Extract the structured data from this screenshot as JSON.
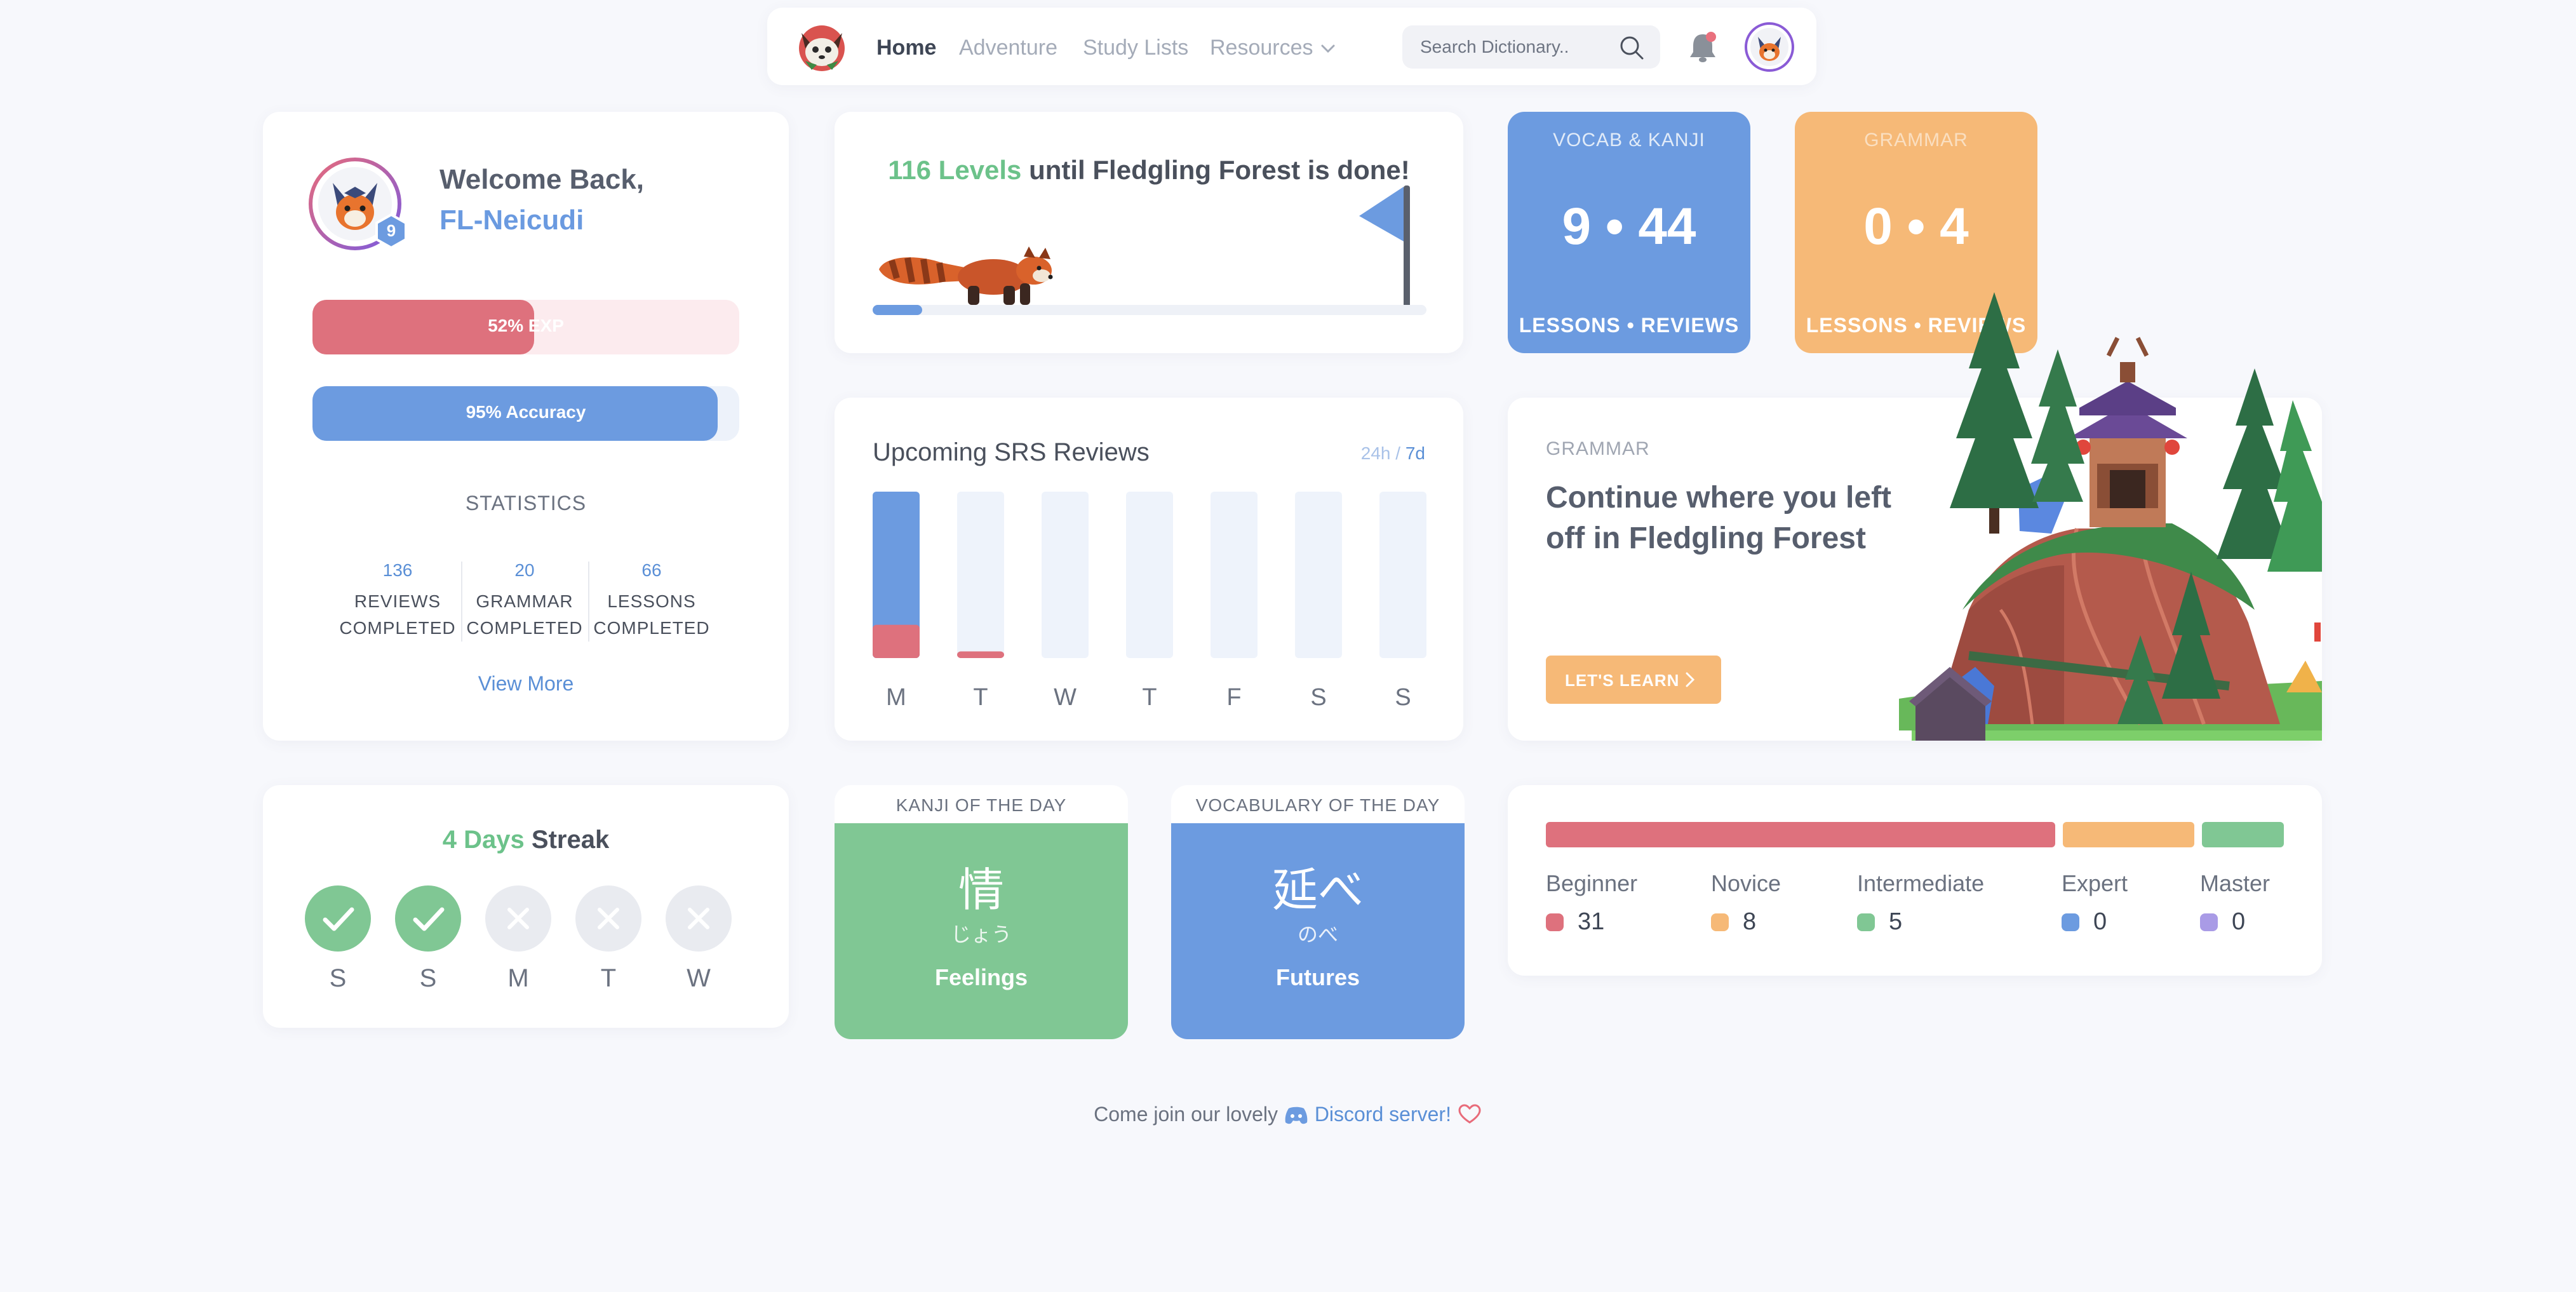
{
  "nav": {
    "items": [
      {
        "label": "Home",
        "active": true
      },
      {
        "label": "Adventure",
        "active": false
      },
      {
        "label": "Study Lists",
        "active": false
      },
      {
        "label": "Resources",
        "active": false
      }
    ],
    "search_placeholder": "Search Dictionary.."
  },
  "profile": {
    "welcome": "Welcome Back,",
    "username": "FL-Neicudi",
    "level": "9",
    "exp_label": "52% EXP",
    "exp_fraction": 0.52,
    "accuracy_label": "95% Accuracy",
    "accuracy_fraction": 0.95,
    "stats_heading": "STATISTICS",
    "stats": [
      {
        "value": "136",
        "label_line1": "REVIEWS",
        "label_line2": "COMPLETED"
      },
      {
        "value": "20",
        "label_line1": "GRAMMAR",
        "label_line2": "COMPLETED"
      },
      {
        "value": "66",
        "label_line1": "LESSONS",
        "label_line2": "COMPLETED"
      }
    ],
    "view_more": "View More"
  },
  "levels": {
    "count": "116 Levels",
    "rest": "until Fledgling Forest is done!",
    "progress_fraction": 0.09
  },
  "vocab_card": {
    "title": "VOCAB & KANJI",
    "value": "9 • 44",
    "sub": "LESSONS • REVIEWS"
  },
  "grammar_card": {
    "title": "GRAMMAR",
    "value": "0 • 4",
    "sub": "LESSONS • REVIEWS"
  },
  "srs": {
    "title": "Upcoming SRS Reviews",
    "toggle_24h": "24h",
    "toggle_sep": "/",
    "toggle_7d": "7d",
    "days": [
      "M",
      "T",
      "W",
      "T",
      "F",
      "S",
      "S"
    ],
    "blue_fraction": [
      1.0,
      0.0,
      0.0,
      0.0,
      0.0,
      0.0,
      0.0
    ],
    "red_fraction": [
      0.2,
      0.04,
      0.0,
      0.0,
      0.0,
      0.0,
      0.0
    ]
  },
  "continue": {
    "label": "GRAMMAR",
    "title": "Continue where you left off in Fledgling Forest",
    "button": "LET'S LEARN"
  },
  "streak": {
    "count": "4 Days",
    "word": "Streak",
    "days": [
      {
        "label": "S",
        "done": true
      },
      {
        "label": "S",
        "done": true
      },
      {
        "label": "M",
        "done": false
      },
      {
        "label": "T",
        "done": false
      },
      {
        "label": "W",
        "done": false
      }
    ]
  },
  "kanji_of_day": {
    "heading": "KANJI OF THE DAY",
    "character": "情",
    "reading": "じょう",
    "meaning": "Feelings"
  },
  "vocab_of_day": {
    "heading": "VOCABULARY OF THE DAY",
    "word": "延べ",
    "reading": "のべ",
    "meaning": "Futures"
  },
  "mastery": [
    {
      "name": "Beginner",
      "count": "31",
      "color": "#de717d"
    },
    {
      "name": "Novice",
      "count": "8",
      "color": "#f6b977"
    },
    {
      "name": "Intermediate",
      "count": "5",
      "color": "#80c794"
    },
    {
      "name": "Expert",
      "count": "0",
      "color": "#6c9be0"
    },
    {
      "name": "Master",
      "count": "0",
      "color": "#a99be6"
    }
  ],
  "footer": {
    "text": "Come join our lovely",
    "link": "Discord server!"
  },
  "colors": {
    "red": "#de717d",
    "blue": "#6c9be0",
    "orange": "#f6b977",
    "green": "#80c794"
  }
}
